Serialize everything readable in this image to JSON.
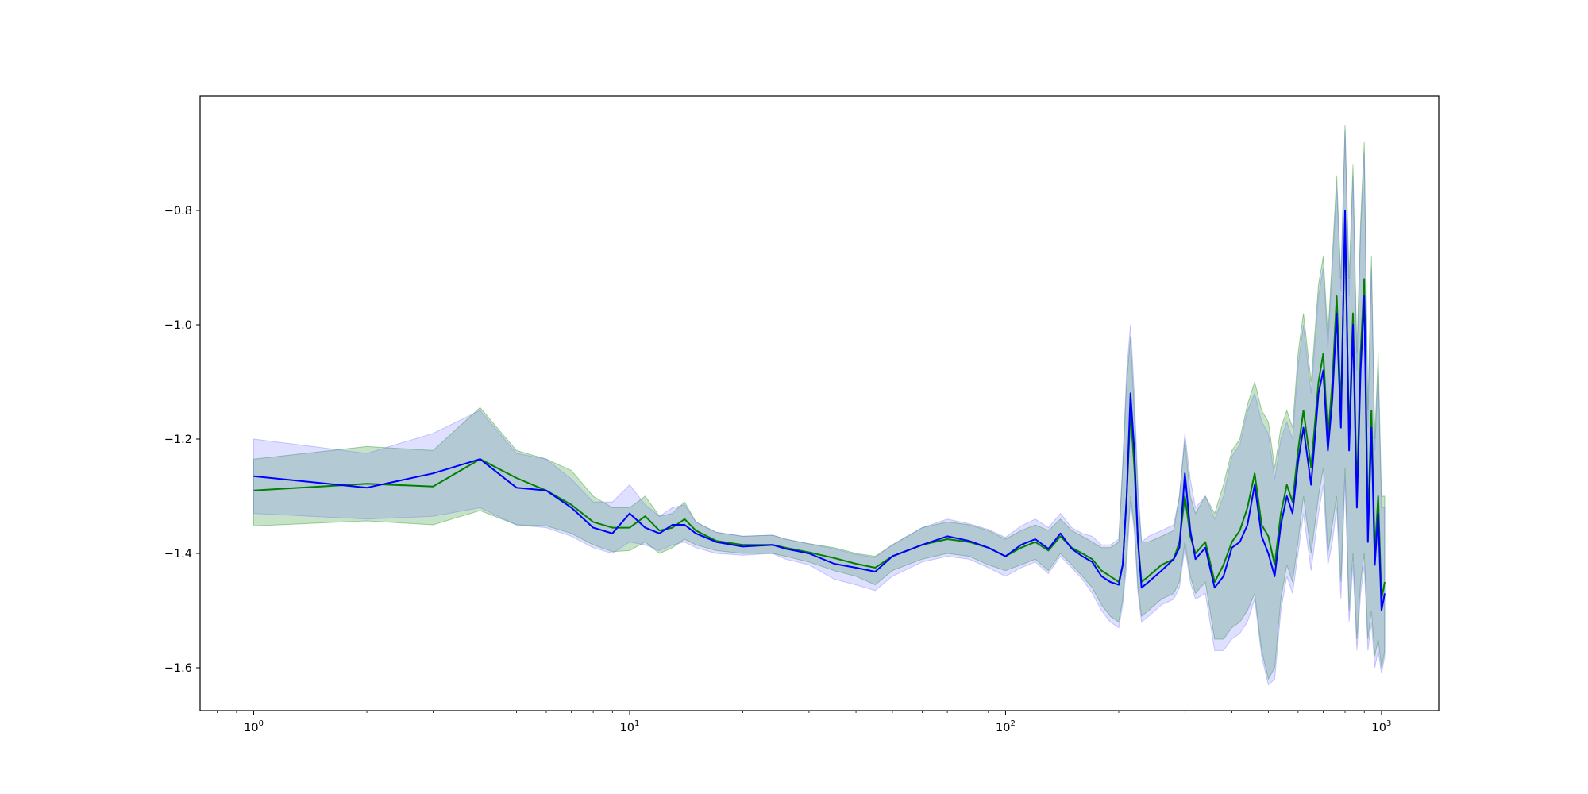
{
  "chart_data": {
    "type": "line",
    "xscale": "log",
    "xlim": [
      0.72,
      1420
    ],
    "ylim": [
      -1.675,
      -0.6
    ],
    "grid": false,
    "legend": "none",
    "x_ticks": [
      {
        "value": 1,
        "base": "10",
        "exp": "0"
      },
      {
        "value": 10,
        "base": "10",
        "exp": "1"
      },
      {
        "value": 100,
        "base": "10",
        "exp": "2"
      },
      {
        "value": 1000,
        "base": "10",
        "exp": "3"
      }
    ],
    "y_ticks": [
      {
        "value": -0.8,
        "label": "−0.8"
      },
      {
        "value": -1.0,
        "label": "−1.0"
      },
      {
        "value": -1.2,
        "label": "−1.2"
      },
      {
        "value": -1.4,
        "label": "−1.4"
      },
      {
        "value": -1.6,
        "label": "−1.6"
      }
    ],
    "series": [
      {
        "color": "#008000",
        "band_color": "#008000",
        "x": [
          1,
          2,
          3,
          4,
          5,
          6,
          7,
          8,
          9,
          10,
          11,
          12,
          13,
          14,
          15,
          17,
          20,
          24,
          26,
          30,
          35,
          40,
          45,
          50,
          60,
          70,
          80,
          90,
          100,
          110,
          120,
          130,
          140,
          150,
          160,
          170,
          180,
          190,
          200,
          205,
          210,
          215,
          220,
          225,
          230,
          240,
          260,
          280,
          290,
          300,
          310,
          320,
          340,
          360,
          380,
          400,
          420,
          440,
          460,
          480,
          500,
          520,
          540,
          560,
          580,
          600,
          620,
          650,
          680,
          700,
          720,
          740,
          760,
          780,
          800,
          820,
          840,
          860,
          880,
          900,
          920,
          940,
          960,
          980,
          1000,
          1020
        ],
        "y": [
          -1.29,
          -1.278,
          -1.283,
          -1.235,
          -1.268,
          -1.29,
          -1.315,
          -1.345,
          -1.355,
          -1.355,
          -1.335,
          -1.36,
          -1.355,
          -1.34,
          -1.36,
          -1.378,
          -1.385,
          -1.385,
          -1.39,
          -1.398,
          -1.408,
          -1.418,
          -1.425,
          -1.405,
          -1.385,
          -1.375,
          -1.38,
          -1.39,
          -1.405,
          -1.39,
          -1.38,
          -1.395,
          -1.37,
          -1.39,
          -1.4,
          -1.41,
          -1.43,
          -1.44,
          -1.45,
          -1.42,
          -1.3,
          -1.15,
          -1.25,
          -1.38,
          -1.45,
          -1.44,
          -1.42,
          -1.41,
          -1.38,
          -1.3,
          -1.37,
          -1.4,
          -1.38,
          -1.45,
          -1.42,
          -1.38,
          -1.36,
          -1.32,
          -1.26,
          -1.35,
          -1.37,
          -1.42,
          -1.33,
          -1.28,
          -1.31,
          -1.22,
          -1.15,
          -1.25,
          -1.1,
          -1.05,
          -1.2,
          -1.1,
          -0.95,
          -1.15,
          -0.82,
          -1.2,
          -0.98,
          -1.3,
          -1.05,
          -0.92,
          -1.35,
          -1.15,
          -1.4,
          -1.3,
          -1.48,
          -1.45
        ],
        "lower": [
          -1.352,
          -1.343,
          -1.35,
          -1.325,
          -1.35,
          -1.352,
          -1.365,
          -1.385,
          -1.397,
          -1.395,
          -1.38,
          -1.4,
          -1.39,
          -1.375,
          -1.385,
          -1.395,
          -1.4,
          -1.4,
          -1.405,
          -1.415,
          -1.43,
          -1.44,
          -1.455,
          -1.43,
          -1.41,
          -1.4,
          -1.405,
          -1.42,
          -1.43,
          -1.42,
          -1.41,
          -1.43,
          -1.4,
          -1.42,
          -1.44,
          -1.46,
          -1.49,
          -1.51,
          -1.52,
          -1.48,
          -1.4,
          -1.3,
          -1.35,
          -1.46,
          -1.51,
          -1.5,
          -1.48,
          -1.47,
          -1.45,
          -1.38,
          -1.44,
          -1.47,
          -1.45,
          -1.55,
          -1.55,
          -1.53,
          -1.52,
          -1.5,
          -1.47,
          -1.57,
          -1.62,
          -1.6,
          -1.48,
          -1.42,
          -1.45,
          -1.38,
          -1.3,
          -1.4,
          -1.3,
          -1.25,
          -1.4,
          -1.35,
          -1.3,
          -1.45,
          -1.25,
          -1.5,
          -1.4,
          -1.55,
          -1.45,
          -1.4,
          -1.55,
          -1.5,
          -1.58,
          -1.55,
          -1.6,
          -1.57
        ],
        "upper": [
          -1.235,
          -1.213,
          -1.22,
          -1.145,
          -1.22,
          -1.235,
          -1.255,
          -1.3,
          -1.32,
          -1.32,
          -1.3,
          -1.335,
          -1.33,
          -1.31,
          -1.345,
          -1.363,
          -1.37,
          -1.368,
          -1.375,
          -1.383,
          -1.39,
          -1.4,
          -1.405,
          -1.385,
          -1.355,
          -1.345,
          -1.35,
          -1.36,
          -1.375,
          -1.36,
          -1.35,
          -1.36,
          -1.34,
          -1.36,
          -1.37,
          -1.38,
          -1.39,
          -1.39,
          -1.38,
          -1.25,
          -1.1,
          -1.02,
          -1.15,
          -1.3,
          -1.38,
          -1.38,
          -1.37,
          -1.36,
          -1.3,
          -1.2,
          -1.3,
          -1.33,
          -1.3,
          -1.33,
          -1.28,
          -1.22,
          -1.2,
          -1.14,
          -1.1,
          -1.15,
          -1.17,
          -1.25,
          -1.18,
          -1.15,
          -1.18,
          -1.05,
          -0.98,
          -1.1,
          -0.93,
          -0.88,
          -1.02,
          -0.88,
          -0.74,
          -0.92,
          -0.65,
          -0.92,
          -0.72,
          -1.05,
          -0.82,
          -0.68,
          -1.15,
          -0.88,
          -1.2,
          -1.05,
          -1.3,
          -1.3
        ]
      },
      {
        "color": "#0000ff",
        "band_color": "#6e6eff",
        "x": [
          1,
          2,
          3,
          4,
          5,
          6,
          7,
          8,
          9,
          10,
          11,
          12,
          13,
          14,
          15,
          17,
          20,
          24,
          26,
          30,
          35,
          40,
          45,
          50,
          60,
          70,
          80,
          90,
          100,
          110,
          120,
          130,
          140,
          150,
          160,
          170,
          180,
          190,
          200,
          205,
          210,
          215,
          220,
          225,
          230,
          240,
          260,
          280,
          290,
          300,
          310,
          320,
          340,
          360,
          380,
          400,
          420,
          440,
          460,
          480,
          500,
          520,
          540,
          560,
          580,
          600,
          620,
          650,
          680,
          700,
          720,
          740,
          760,
          780,
          800,
          820,
          840,
          860,
          880,
          900,
          920,
          940,
          960,
          980,
          1000,
          1020
        ],
        "y": [
          -1.265,
          -1.285,
          -1.26,
          -1.235,
          -1.285,
          -1.29,
          -1.32,
          -1.355,
          -1.365,
          -1.33,
          -1.355,
          -1.365,
          -1.35,
          -1.35,
          -1.365,
          -1.38,
          -1.388,
          -1.385,
          -1.392,
          -1.4,
          -1.418,
          -1.425,
          -1.432,
          -1.405,
          -1.385,
          -1.37,
          -1.378,
          -1.39,
          -1.405,
          -1.385,
          -1.375,
          -1.392,
          -1.365,
          -1.392,
          -1.405,
          -1.415,
          -1.44,
          -1.45,
          -1.455,
          -1.42,
          -1.3,
          -1.12,
          -1.22,
          -1.38,
          -1.46,
          -1.45,
          -1.43,
          -1.41,
          -1.39,
          -1.26,
          -1.36,
          -1.41,
          -1.39,
          -1.46,
          -1.44,
          -1.39,
          -1.38,
          -1.35,
          -1.28,
          -1.37,
          -1.4,
          -1.44,
          -1.35,
          -1.3,
          -1.33,
          -1.24,
          -1.18,
          -1.28,
          -1.12,
          -1.08,
          -1.22,
          -1.13,
          -0.98,
          -1.18,
          -0.8,
          -1.22,
          -1.0,
          -1.32,
          -1.08,
          -0.95,
          -1.38,
          -1.18,
          -1.42,
          -1.33,
          -1.5,
          -1.47
        ],
        "lower": [
          -1.33,
          -1.34,
          -1.335,
          -1.32,
          -1.35,
          -1.355,
          -1.37,
          -1.39,
          -1.4,
          -1.38,
          -1.385,
          -1.395,
          -1.385,
          -1.38,
          -1.39,
          -1.4,
          -1.403,
          -1.4,
          -1.41,
          -1.42,
          -1.445,
          -1.455,
          -1.465,
          -1.44,
          -1.415,
          -1.405,
          -1.41,
          -1.425,
          -1.44,
          -1.425,
          -1.415,
          -1.435,
          -1.405,
          -1.425,
          -1.445,
          -1.47,
          -1.5,
          -1.52,
          -1.53,
          -1.49,
          -1.42,
          -1.31,
          -1.36,
          -1.47,
          -1.52,
          -1.51,
          -1.49,
          -1.48,
          -1.46,
          -1.39,
          -1.45,
          -1.48,
          -1.47,
          -1.57,
          -1.57,
          -1.55,
          -1.54,
          -1.52,
          -1.48,
          -1.58,
          -1.63,
          -1.62,
          -1.5,
          -1.44,
          -1.47,
          -1.4,
          -1.33,
          -1.43,
          -1.33,
          -1.28,
          -1.42,
          -1.38,
          -1.32,
          -1.48,
          -1.27,
          -1.52,
          -1.42,
          -1.57,
          -1.47,
          -1.42,
          -1.57,
          -1.52,
          -1.6,
          -1.57,
          -1.61,
          -1.58
        ],
        "upper": [
          -1.2,
          -1.225,
          -1.19,
          -1.15,
          -1.225,
          -1.235,
          -1.27,
          -1.31,
          -1.31,
          -1.28,
          -1.315,
          -1.335,
          -1.32,
          -1.315,
          -1.345,
          -1.363,
          -1.37,
          -1.368,
          -1.375,
          -1.383,
          -1.392,
          -1.402,
          -1.407,
          -1.385,
          -1.355,
          -1.34,
          -1.348,
          -1.358,
          -1.372,
          -1.352,
          -1.34,
          -1.355,
          -1.33,
          -1.355,
          -1.365,
          -1.37,
          -1.385,
          -1.385,
          -1.375,
          -1.24,
          -1.08,
          -1.0,
          -1.12,
          -1.28,
          -1.38,
          -1.37,
          -1.36,
          -1.35,
          -1.3,
          -1.19,
          -1.27,
          -1.32,
          -1.3,
          -1.34,
          -1.3,
          -1.23,
          -1.21,
          -1.15,
          -1.12,
          -1.17,
          -1.19,
          -1.27,
          -1.2,
          -1.17,
          -1.2,
          -1.07,
          -1.0,
          -1.12,
          -0.95,
          -0.9,
          -1.04,
          -0.9,
          -0.76,
          -0.94,
          -0.66,
          -0.95,
          -0.74,
          -1.08,
          -0.84,
          -0.7,
          -1.18,
          -0.9,
          -1.22,
          -1.08,
          -1.32,
          -1.32
        ]
      }
    ]
  }
}
